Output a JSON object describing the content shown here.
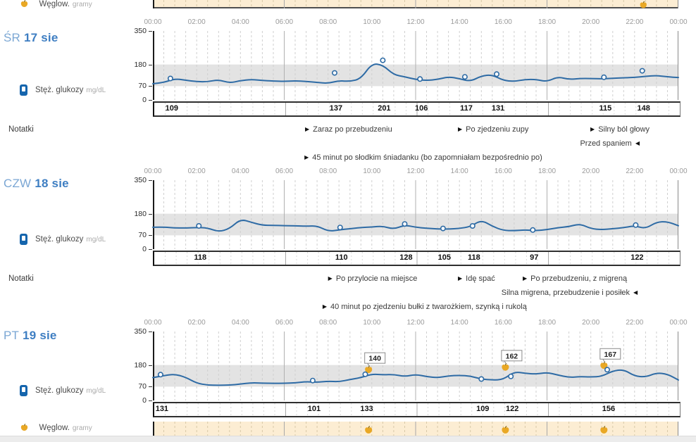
{
  "labels": {
    "glucose": "Stęż. glukozy",
    "glucose_unit": "mg/dL",
    "carbs": "Węglow.",
    "carbs_unit": "gramy",
    "notes": "Notatki",
    "note_arrow_right": "▶",
    "note_arrow_left": "◀"
  },
  "axis": {
    "time_ticks": [
      "00:00",
      "02:00",
      "04:00",
      "06:00",
      "08:00",
      "10:00",
      "12:00",
      "14:00",
      "16:00",
      "18:00",
      "20:00",
      "22:00",
      "00:00"
    ],
    "y_ticks": [
      "350",
      "180",
      "70",
      "0"
    ],
    "y_max": 350,
    "target_range": [
      70,
      180
    ]
  },
  "colors": {
    "line": "#2e6ba5",
    "target_band": "#e3e3e3",
    "carb_band": "#fcedd3",
    "apple": "#e9a825",
    "apple_stem": "#8a6a12",
    "day_light": "#7ba7d4",
    "day_strong": "#3e7ec2"
  },
  "top_partial_row": {
    "carb_times": [
      22.4
    ]
  },
  "chart_data": [
    {
      "type": "line",
      "day_label": "ŚR",
      "date_label": "17 sie",
      "ylabel": "Stęż. glukozy (mg/dL)",
      "ylim": [
        0,
        350
      ],
      "x_start_hour": 0,
      "x_step_hours": 0.5,
      "values": [
        82,
        88,
        108,
        100,
        93,
        92,
        103,
        86,
        98,
        104,
        99,
        96,
        94,
        97,
        94,
        89,
        84,
        98,
        94,
        108,
        185,
        178,
        128,
        118,
        104,
        99,
        104,
        118,
        108,
        94,
        122,
        128,
        99,
        94,
        104,
        104,
        93,
        118,
        104,
        109,
        109,
        107,
        110,
        112,
        114,
        120,
        124,
        117,
        114
      ],
      "readings": [
        {
          "t": 0.8,
          "value": 109
        },
        {
          "t": 8.3,
          "value": 137
        },
        {
          "t": 10.5,
          "value": 201
        },
        {
          "t": 12.2,
          "value": 106
        },
        {
          "t": 14.25,
          "value": 117
        },
        {
          "t": 15.7,
          "value": 131
        },
        {
          "t": 20.6,
          "value": 115
        },
        {
          "t": 22.35,
          "value": 148
        }
      ],
      "carbs": [],
      "notes": [
        {
          "row": 1,
          "t": 6.95,
          "dir": "right",
          "text": "Zaraz po przebudzeniu"
        },
        {
          "row": 1,
          "t": 13.93,
          "dir": "right",
          "text": "Po zjedzeniu zupy"
        },
        {
          "row": 1,
          "t": 19.98,
          "dir": "right",
          "text": "Silny ból głowy"
        },
        {
          "row": 2,
          "t": 22.23,
          "dir": "left",
          "text": "Przed spaniem"
        },
        {
          "row": 3,
          "t": 6.92,
          "dir": "right",
          "text": "45 minut po słodkim śniadanku (bo zapomniałam bezpośrednio po)"
        }
      ]
    },
    {
      "type": "line",
      "day_label": "CZW",
      "date_label": "18 sie",
      "ylabel": "Stęż. glukozy (mg/dL)",
      "ylim": [
        0,
        350
      ],
      "x_start_hour": 0,
      "x_step_hours": 0.5,
      "values": [
        111,
        112,
        108,
        107,
        110,
        108,
        88,
        104,
        152,
        136,
        121,
        121,
        119,
        119,
        116,
        119,
        91,
        97,
        104,
        110,
        112,
        117,
        101,
        123,
        111,
        106,
        102,
        102,
        105,
        114,
        148,
        116,
        95,
        94,
        98,
        94,
        99,
        109,
        114,
        129,
        104,
        99,
        104,
        109,
        119,
        104,
        138,
        140,
        119
      ],
      "readings": [
        {
          "t": 2.1,
          "value": 118
        },
        {
          "t": 8.55,
          "value": 110
        },
        {
          "t": 11.5,
          "value": 128
        },
        {
          "t": 13.25,
          "value": 105
        },
        {
          "t": 14.6,
          "value": 118
        },
        {
          "t": 17.35,
          "value": 97
        },
        {
          "t": 22.05,
          "value": 122
        }
      ],
      "carbs": [],
      "notes": [
        {
          "row": 1,
          "t": 8.0,
          "dir": "right",
          "text": "Po przylocie na miejsce"
        },
        {
          "row": 1,
          "t": 13.93,
          "dir": "right",
          "text": "Idę spać"
        },
        {
          "row": 1,
          "t": 16.89,
          "dir": "right",
          "text": "Po przebudzeniu, z migreną"
        },
        {
          "row": 2,
          "t": 22.14,
          "dir": "left",
          "text": "Silna migrena, przebudzenie i posiłek"
        },
        {
          "row": 3,
          "t": 7.75,
          "dir": "right",
          "text": "40 minut po zjedzeniu bułki z twarożkiem, szynką i rukolą"
        }
      ]
    },
    {
      "type": "line",
      "day_label": "PT",
      "date_label": "19 sie",
      "ylabel": "Stęż. glukozy (mg/dL)",
      "ylim": [
        0,
        350
      ],
      "x_start_hour": 0,
      "x_step_hours": 0.5,
      "values": [
        116,
        126,
        134,
        118,
        88,
        78,
        77,
        78,
        83,
        90,
        88,
        87,
        87,
        89,
        96,
        92,
        98,
        95,
        106,
        116,
        134,
        130,
        132,
        121,
        132,
        121,
        115,
        125,
        128,
        124,
        108,
        104,
        106,
        146,
        138,
        134,
        142,
        129,
        117,
        121,
        119,
        122,
        150,
        157,
        124,
        119,
        140,
        134,
        104
      ],
      "readings": [
        {
          "t": 0.35,
          "value": 131
        },
        {
          "t": 7.3,
          "value": 101
        },
        {
          "t": 9.7,
          "value": 133
        },
        {
          "t": 15.0,
          "value": 109
        },
        {
          "t": 16.35,
          "value": 122
        },
        {
          "t": 20.75,
          "value": 156
        }
      ],
      "carbs": [
        {
          "t": 9.85,
          "callout": "140",
          "line_v": 128
        },
        {
          "t": 16.1,
          "callout": "162",
          "line_v": 140
        },
        {
          "t": 20.6,
          "callout": "167",
          "line_v": 149
        }
      ],
      "notes": []
    }
  ]
}
